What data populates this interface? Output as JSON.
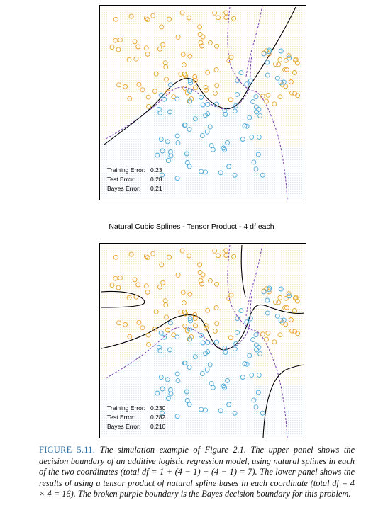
{
  "top_panel": {
    "errors": [
      {
        "label": "Training Error:",
        "value": "0.23"
      },
      {
        "label": "Test Error:",
        "value": "0.28"
      },
      {
        "label": "Bayes Error:",
        "value": "0.21"
      }
    ]
  },
  "bottom_panel": {
    "title": "Natural Cubic Splines - Tensor Product - 4 df each",
    "errors": [
      {
        "label": "Training Error:",
        "value": "0.230"
      },
      {
        "label": "Test Error:",
        "value": "0.282"
      },
      {
        "label": "Bayes Error:",
        "value": "0.210"
      }
    ]
  },
  "caption": {
    "label": "FIGURE 5.11.",
    "text": "The simulation example of Figure 2.1. The upper panel shows the decision boundary of an additive logistic regression model, using natural splines in each of the two coordinates (total df = 1 + (4 − 1) + (4 − 1) = 7). The lower panel shows the results of using a tensor product of natural spline bases in each coordinate (total df = 4 × 4 = 16). The broken purple boundary is the Bayes decision boundary for this problem."
  },
  "colors": {
    "orange_class": "#e8a52a",
    "blue_class": "#4aa8d8",
    "model_boundary": "#000000",
    "bayes_boundary": "#7a3fb0",
    "caption_label": "#2a6fa8"
  }
}
